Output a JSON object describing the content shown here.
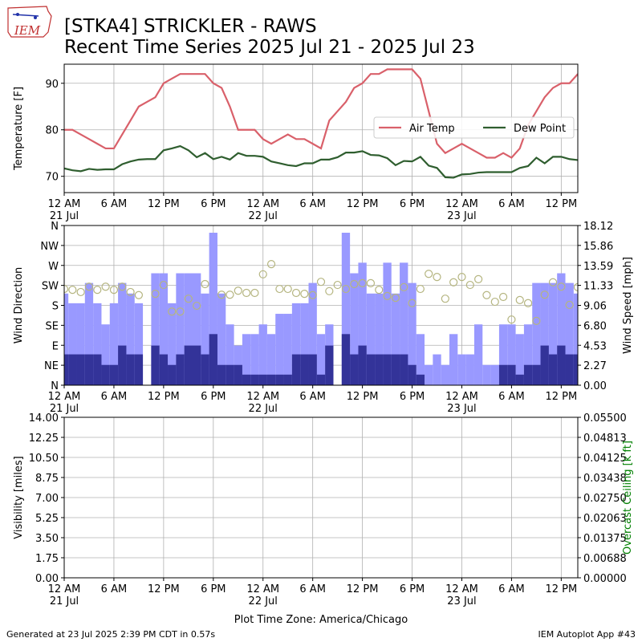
{
  "figure": {
    "logo": "IEM",
    "title": [
      "[STKA4] STRICKLER - RAWS",
      "Recent Time Series 2025 Jul 21 - 2025 Jul 23"
    ],
    "footer_left": "Generated at 23 Jul 2025 2:39 PM CDT in 0.57s",
    "footer_right": "IEM Autoplot App #43"
  },
  "chart_data": [
    {
      "type": "line",
      "ylabel": "Temperature [F]",
      "x": [
        "2025-07-21T00:00",
        "2025-07-21T01:00",
        "2025-07-21T02:00",
        "2025-07-21T03:00",
        "2025-07-21T04:00",
        "2025-07-21T05:00",
        "2025-07-21T06:00",
        "2025-07-21T07:00",
        "2025-07-21T08:00",
        "2025-07-21T09:00",
        "2025-07-21T10:00",
        "2025-07-21T11:00",
        "2025-07-21T12:00",
        "2025-07-21T13:00",
        "2025-07-21T14:00",
        "2025-07-21T15:00",
        "2025-07-21T16:00",
        "2025-07-21T17:00",
        "2025-07-21T18:00",
        "2025-07-21T19:00",
        "2025-07-21T20:00",
        "2025-07-21T21:00",
        "2025-07-21T22:00",
        "2025-07-21T23:00",
        "2025-07-22T00:00",
        "2025-07-22T01:00",
        "2025-07-22T02:00",
        "2025-07-22T03:00",
        "2025-07-22T04:00",
        "2025-07-22T05:00",
        "2025-07-22T06:00",
        "2025-07-22T07:00",
        "2025-07-22T08:00",
        "2025-07-22T09:00",
        "2025-07-22T10:00",
        "2025-07-22T11:00",
        "2025-07-22T12:00",
        "2025-07-22T13:00",
        "2025-07-22T14:00",
        "2025-07-22T15:00",
        "2025-07-22T16:00",
        "2025-07-22T17:00",
        "2025-07-22T18:00",
        "2025-07-22T19:00",
        "2025-07-22T20:00",
        "2025-07-22T21:00",
        "2025-07-22T22:00",
        "2025-07-22T23:00",
        "2025-07-23T00:00",
        "2025-07-23T01:00",
        "2025-07-23T02:00",
        "2025-07-23T03:00",
        "2025-07-23T04:00",
        "2025-07-23T05:00",
        "2025-07-23T06:00",
        "2025-07-23T07:00",
        "2025-07-23T08:00",
        "2025-07-23T09:00",
        "2025-07-23T10:00",
        "2025-07-23T11:00",
        "2025-07-23T12:00",
        "2025-07-23T13:00",
        "2025-07-23T14:00"
      ],
      "series": [
        {
          "name": "Air Temp",
          "color": "#d9606a",
          "values": [
            80,
            80,
            79,
            78,
            77,
            76,
            76,
            79,
            82,
            85,
            86,
            87,
            90,
            91,
            92,
            92,
            92,
            92,
            90,
            89,
            85,
            80,
            80,
            80,
            78,
            77,
            78,
            79,
            78,
            78,
            77,
            76,
            82,
            84,
            86,
            89,
            90,
            92,
            92,
            93,
            93,
            93,
            93,
            91,
            84,
            77,
            75,
            76,
            77,
            76,
            75,
            74,
            74,
            75,
            74,
            76,
            81,
            84,
            87,
            89,
            90,
            90,
            92
          ]
        },
        {
          "name": "Dew Point",
          "color": "#2f5e2f",
          "values": [
            71.7,
            71.3,
            71.1,
            71.6,
            71.4,
            71.5,
            71.5,
            72.6,
            73.2,
            73.6,
            73.7,
            73.7,
            75.6,
            76.0,
            76.5,
            75.6,
            74.1,
            75.0,
            73.7,
            74.2,
            73.6,
            75.0,
            74.4,
            74.4,
            74.2,
            73.2,
            72.8,
            72.4,
            72.2,
            72.8,
            72.8,
            73.6,
            73.6,
            74.1,
            75.1,
            75.1,
            75.4,
            74.6,
            74.5,
            73.9,
            72.4,
            73.3,
            73.2,
            74.2,
            72.3,
            71.8,
            69.8,
            69.7,
            70.4,
            70.5,
            70.8,
            70.9,
            70.9,
            70.9,
            70.9,
            71.8,
            72.2,
            74.0,
            72.8,
            74.2,
            74.2,
            73.7,
            73.5
          ]
        }
      ],
      "xlim": [
        "2025-07-21T00:00",
        "2025-07-23T14:00"
      ],
      "xticks": [
        {
          "value": "2025-07-21T00:00",
          "label": "12 AM"
        },
        {
          "value": "2025-07-21T06:00",
          "label": "6 AM"
        },
        {
          "value": "2025-07-21T12:00",
          "label": "12 PM"
        },
        {
          "value": "2025-07-21T18:00",
          "label": "6 PM"
        },
        {
          "value": "2025-07-22T00:00",
          "label": "12 AM"
        },
        {
          "value": "2025-07-22T06:00",
          "label": "6 AM"
        },
        {
          "value": "2025-07-22T12:00",
          "label": "12 PM"
        },
        {
          "value": "2025-07-22T18:00",
          "label": "6 PM"
        },
        {
          "value": "2025-07-23T00:00",
          "label": "12 AM"
        },
        {
          "value": "2025-07-23T06:00",
          "label": "6 AM"
        },
        {
          "value": "2025-07-23T12:00",
          "label": "12 PM"
        }
      ],
      "xtick_dates": [
        {
          "value": "2025-07-21T00:00",
          "label": "21 Jul"
        },
        {
          "value": "2025-07-22T00:00",
          "label": "22 Jul"
        },
        {
          "value": "2025-07-23T00:00",
          "label": "23 Jul"
        }
      ],
      "ylim": [
        66.5,
        94.1
      ],
      "yticks": [
        70,
        80,
        90
      ],
      "grid": true,
      "legend": "center right"
    },
    {
      "type": "bar",
      "ylabel": "Wind Direction",
      "y2label": "Wind Speed [mph]",
      "x": [
        "2025-07-21T00:00",
        "2025-07-21T01:00",
        "2025-07-21T02:00",
        "2025-07-21T03:00",
        "2025-07-21T04:00",
        "2025-07-21T05:00",
        "2025-07-21T06:00",
        "2025-07-21T07:00",
        "2025-07-21T08:00",
        "2025-07-21T09:00",
        "2025-07-21T10:00",
        "2025-07-21T11:00",
        "2025-07-21T12:00",
        "2025-07-21T13:00",
        "2025-07-21T14:00",
        "2025-07-21T15:00",
        "2025-07-21T16:00",
        "2025-07-21T17:00",
        "2025-07-21T18:00",
        "2025-07-21T19:00",
        "2025-07-21T20:00",
        "2025-07-21T21:00",
        "2025-07-21T22:00",
        "2025-07-21T23:00",
        "2025-07-22T00:00",
        "2025-07-22T01:00",
        "2025-07-22T02:00",
        "2025-07-22T03:00",
        "2025-07-22T04:00",
        "2025-07-22T05:00",
        "2025-07-22T06:00",
        "2025-07-22T07:00",
        "2025-07-22T08:00",
        "2025-07-22T09:00",
        "2025-07-22T10:00",
        "2025-07-22T11:00",
        "2025-07-22T12:00",
        "2025-07-22T13:00",
        "2025-07-22T14:00",
        "2025-07-22T15:00",
        "2025-07-22T16:00",
        "2025-07-22T17:00",
        "2025-07-22T18:00",
        "2025-07-22T19:00",
        "2025-07-22T20:00",
        "2025-07-22T21:00",
        "2025-07-22T22:00",
        "2025-07-22T23:00",
        "2025-07-23T00:00",
        "2025-07-23T01:00",
        "2025-07-23T02:00",
        "2025-07-23T03:00",
        "2025-07-23T04:00",
        "2025-07-23T05:00",
        "2025-07-23T06:00",
        "2025-07-23T07:00",
        "2025-07-23T08:00",
        "2025-07-23T09:00",
        "2025-07-23T10:00",
        "2025-07-23T11:00",
        "2025-07-23T12:00",
        "2025-07-23T13:00",
        "2025-07-23T14:00"
      ],
      "series": [
        {
          "type": "bar",
          "axis": "y2",
          "color": "#9999ff",
          "values": [
            10.4,
            9.3,
            9.3,
            11.6,
            9.3,
            6.9,
            9.3,
            11.6,
            10.4,
            9.3,
            0,
            12.7,
            12.7,
            9.3,
            12.7,
            12.7,
            12.7,
            10.4,
            17.3,
            10.4,
            6.9,
            4.5,
            5.8,
            5.8,
            6.9,
            5.8,
            8.1,
            8.1,
            9.3,
            9.3,
            11.6,
            5.8,
            6.9,
            0,
            17.3,
            12.7,
            13.9,
            10.4,
            10.4,
            13.9,
            10.4,
            13.9,
            11.6,
            5.8,
            2.3,
            3.5,
            2.3,
            5.8,
            3.5,
            3.5,
            6.9,
            2.3,
            2.3,
            6.9,
            6.9,
            5.8,
            6.9,
            11.6,
            11.6,
            11.6,
            12.7,
            11.6,
            10.4
          ]
        },
        {
          "type": "bar",
          "axis": "y2",
          "color": "#333399",
          "values": [
            3.5,
            3.5,
            3.5,
            3.5,
            3.5,
            2.3,
            2.3,
            4.5,
            3.5,
            3.5,
            0,
            4.5,
            3.5,
            2.3,
            3.5,
            4.5,
            4.5,
            3.5,
            5.8,
            2.3,
            2.3,
            2.3,
            1.2,
            1.2,
            1.2,
            1.2,
            1.2,
            1.2,
            3.5,
            3.5,
            3.5,
            1.2,
            4.5,
            0,
            5.8,
            3.5,
            4.5,
            3.5,
            3.5,
            3.5,
            3.5,
            3.5,
            2.3,
            1.2,
            0,
            0,
            0,
            0,
            0,
            0,
            0,
            0,
            0,
            2.3,
            2.3,
            1.2,
            2.3,
            2.3,
            4.5,
            3.5,
            4.5,
            3.5,
            3.5
          ]
        },
        {
          "type": "scatter",
          "color": "#b5b580",
          "values": [
            217,
            215,
            210,
            222,
            215,
            222,
            215,
            222,
            210,
            203,
            null,
            206,
            226,
            166,
            166,
            195,
            179,
            228,
            null,
            204,
            204,
            213,
            208,
            208,
            250,
            273,
            217,
            217,
            208,
            206,
            203,
            233,
            212,
            226,
            217,
            228,
            230,
            230,
            215,
            201,
            197,
            221,
            185,
            217,
            251,
            244,
            195,
            232,
            244,
            226,
            239,
            203,
            188,
            199,
            148,
            192,
            185,
            145,
            204,
            232,
            222,
            181,
            221
          ]
        }
      ],
      "xlim": [
        "2025-07-21T00:00",
        "2025-07-23T14:00"
      ],
      "xticks": [
        {
          "value": "2025-07-21T00:00",
          "label": "12 AM"
        },
        {
          "value": "2025-07-21T06:00",
          "label": "6 AM"
        },
        {
          "value": "2025-07-21T12:00",
          "label": "12 PM"
        },
        {
          "value": "2025-07-21T18:00",
          "label": "6 PM"
        },
        {
          "value": "2025-07-22T00:00",
          "label": "12 AM"
        },
        {
          "value": "2025-07-22T06:00",
          "label": "6 AM"
        },
        {
          "value": "2025-07-22T12:00",
          "label": "12 PM"
        },
        {
          "value": "2025-07-22T18:00",
          "label": "6 PM"
        },
        {
          "value": "2025-07-23T00:00",
          "label": "12 AM"
        },
        {
          "value": "2025-07-23T06:00",
          "label": "6 AM"
        },
        {
          "value": "2025-07-23T12:00",
          "label": "12 PM"
        }
      ],
      "xtick_dates": [
        {
          "value": "2025-07-21T00:00",
          "label": "21 Jul"
        },
        {
          "value": "2025-07-22T00:00",
          "label": "22 Jul"
        },
        {
          "value": "2025-07-23T00:00",
          "label": "23 Jul"
        }
      ],
      "ylim": [
        0,
        360
      ],
      "yticks": [
        {
          "value": 0,
          "label": "N"
        },
        {
          "value": 45,
          "label": "NE"
        },
        {
          "value": 90,
          "label": "E"
        },
        {
          "value": 135,
          "label": "SE"
        },
        {
          "value": 180,
          "label": "S"
        },
        {
          "value": 225,
          "label": "SW"
        },
        {
          "value": 270,
          "label": "W"
        },
        {
          "value": 315,
          "label": "NW"
        },
        {
          "value": 360,
          "label": "N"
        }
      ],
      "y2lim": [
        0,
        18.12
      ],
      "y2ticks": [
        {
          "value": 0,
          "label": "0.00"
        },
        {
          "value": 2.27,
          "label": "2.27"
        },
        {
          "value": 4.53,
          "label": "4.53"
        },
        {
          "value": 6.8,
          "label": "6.80"
        },
        {
          "value": 9.06,
          "label": "9.06"
        },
        {
          "value": 11.33,
          "label": "11.33"
        },
        {
          "value": 13.59,
          "label": "13.59"
        },
        {
          "value": 15.86,
          "label": "15.86"
        },
        {
          "value": 18.12,
          "label": "18.12"
        }
      ],
      "grid": true
    },
    {
      "type": "line",
      "ylabel": "Visibility [miles]",
      "y2label": "Overcast Ceiling [k ft]",
      "y2label_color": "green",
      "xlabel": "Plot Time Zone: America/Chicago",
      "xlim": [
        "2025-07-21T00:00",
        "2025-07-23T14:00"
      ],
      "xticks": [
        {
          "value": "2025-07-21T00:00",
          "label": "12 AM"
        },
        {
          "value": "2025-07-21T06:00",
          "label": "6 AM"
        },
        {
          "value": "2025-07-21T12:00",
          "label": "12 PM"
        },
        {
          "value": "2025-07-21T18:00",
          "label": "6 PM"
        },
        {
          "value": "2025-07-22T00:00",
          "label": "12 AM"
        },
        {
          "value": "2025-07-22T06:00",
          "label": "6 AM"
        },
        {
          "value": "2025-07-22T12:00",
          "label": "12 PM"
        },
        {
          "value": "2025-07-22T18:00",
          "label": "6 PM"
        },
        {
          "value": "2025-07-23T00:00",
          "label": "12 AM"
        },
        {
          "value": "2025-07-23T06:00",
          "label": "6 AM"
        },
        {
          "value": "2025-07-23T12:00",
          "label": "12 PM"
        }
      ],
      "xtick_dates": [
        {
          "value": "2025-07-21T00:00",
          "label": "21 Jul"
        },
        {
          "value": "2025-07-22T00:00",
          "label": "22 Jul"
        },
        {
          "value": "2025-07-23T00:00",
          "label": "23 Jul"
        }
      ],
      "ylim": [
        0,
        14
      ],
      "yticks": [
        {
          "value": 0,
          "label": "0.00"
        },
        {
          "value": 1.75,
          "label": "1.75"
        },
        {
          "value": 3.5,
          "label": "3.50"
        },
        {
          "value": 5.25,
          "label": "5.25"
        },
        {
          "value": 7,
          "label": "7.00"
        },
        {
          "value": 8.75,
          "label": "8.75"
        },
        {
          "value": 10.5,
          "label": "10.50"
        },
        {
          "value": 12.25,
          "label": "12.25"
        },
        {
          "value": 14,
          "label": "14.00"
        }
      ],
      "y2lim": [
        0,
        0.055
      ],
      "y2ticks": [
        {
          "value": 0,
          "label": "0.00000"
        },
        {
          "value": 0.006875,
          "label": "0.00688"
        },
        {
          "value": 0.01375,
          "label": "0.01375"
        },
        {
          "value": 0.020625,
          "label": "0.02063"
        },
        {
          "value": 0.0275,
          "label": "0.02750"
        },
        {
          "value": 0.034375,
          "label": "0.03438"
        },
        {
          "value": 0.04125,
          "label": "0.04125"
        },
        {
          "value": 0.048125,
          "label": "0.04813"
        },
        {
          "value": 0.055,
          "label": "0.05500"
        }
      ],
      "grid": true
    }
  ]
}
